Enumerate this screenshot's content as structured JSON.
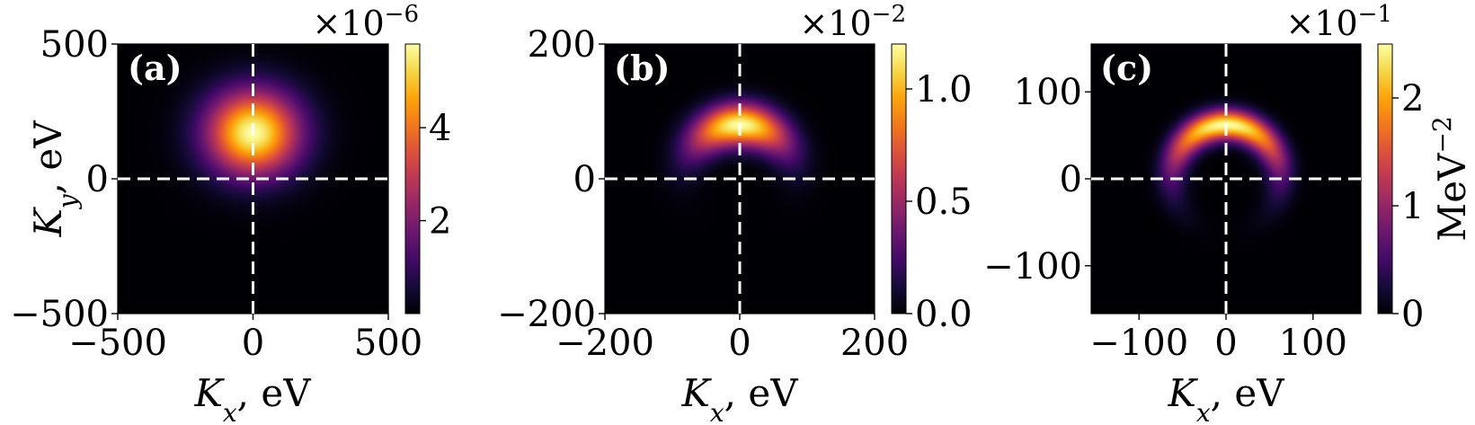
{
  "chart_data": [
    {
      "type": "heatmap",
      "panel_label": "(a)",
      "xlabel_symbol": "K",
      "xlabel_sub": "x",
      "xlabel_unit": ", eV",
      "ylabel_symbol": "K",
      "ylabel_sub": "y",
      "ylabel_unit": ", eV",
      "xlim": [
        -500,
        500
      ],
      "ylim": [
        -500,
        500
      ],
      "xticks": [
        -500,
        0,
        500
      ],
      "yticks": [
        -500,
        0,
        500
      ],
      "xtick_labels": [
        "−500",
        "0",
        "500"
      ],
      "ytick_labels": [
        "−500",
        "0",
        "500"
      ],
      "colormap": "inferno",
      "colorbar": {
        "range": [
          0,
          5.8
        ],
        "ticks": [
          2,
          4
        ],
        "tick_labels": [
          "2",
          "4"
        ],
        "multiplier_base": "×10",
        "multiplier_exp": "−6",
        "label": ""
      },
      "feature": {
        "shape": "gaussian-blob",
        "center": [
          0,
          170
        ],
        "spread_x": 120,
        "spread_y": 110,
        "peak": 5.8
      },
      "crosshair": {
        "x": 0,
        "y": 0
      }
    },
    {
      "type": "heatmap",
      "panel_label": "(b)",
      "xlabel_symbol": "K",
      "xlabel_sub": "x",
      "xlabel_unit": ", eV",
      "xlim": [
        -200,
        200
      ],
      "ylim": [
        -200,
        200
      ],
      "xticks": [
        -200,
        0,
        200
      ],
      "yticks": [
        -200,
        0,
        200
      ],
      "xtick_labels": [
        "−200",
        "0",
        "200"
      ],
      "ytick_labels": [
        "−200",
        "0",
        "200"
      ],
      "colormap": "inferno",
      "colorbar": {
        "range": [
          0,
          1.2
        ],
        "ticks": [
          0.0,
          0.5,
          1.0
        ],
        "tick_labels": [
          "0.0",
          "0.5",
          "1.0"
        ],
        "multiplier_base": "×10",
        "multiplier_exp": "−2",
        "label": ""
      },
      "feature": {
        "shape": "arc",
        "center": [
          0,
          0
        ],
        "radius": 80,
        "radial_width": 22,
        "angle_spread_deg": 40,
        "peak": 1.2
      },
      "crosshair": {
        "x": 0,
        "y": 0
      }
    },
    {
      "type": "heatmap",
      "panel_label": "(c)",
      "xlabel_symbol": "K",
      "xlabel_sub": "x",
      "xlabel_unit": ", eV",
      "xlim": [
        -155,
        155
      ],
      "ylim": [
        -155,
        155
      ],
      "xticks": [
        -100,
        0,
        100
      ],
      "yticks": [
        -100,
        0,
        100
      ],
      "xtick_labels": [
        "−100",
        "0",
        "100"
      ],
      "ytick_labels": [
        "−100",
        "0",
        "100"
      ],
      "colormap": "inferno",
      "colorbar": {
        "range": [
          0,
          2.5
        ],
        "ticks": [
          0,
          1,
          2
        ],
        "tick_labels": [
          "0",
          "1",
          "2"
        ],
        "multiplier_base": "×10",
        "multiplier_exp": "−1",
        "label_base": "MeV",
        "label_exp": "−2"
      },
      "feature": {
        "shape": "ring",
        "center": [
          0,
          0
        ],
        "radius": 62,
        "radial_width": 12,
        "angle_spread_deg": 55,
        "peak": 2.5
      },
      "crosshair": {
        "x": 0,
        "y": 0
      }
    }
  ]
}
